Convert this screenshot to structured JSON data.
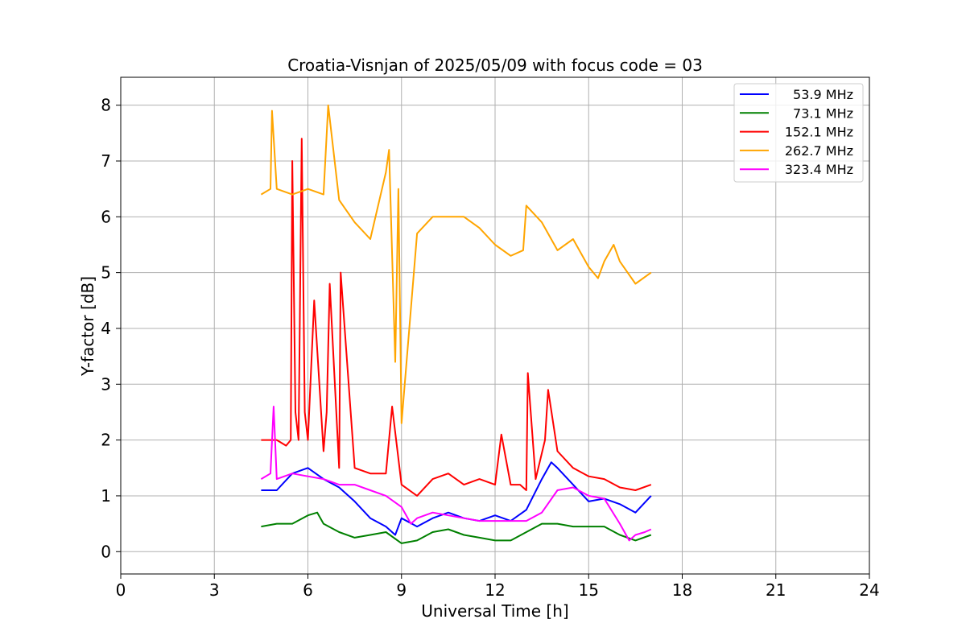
{
  "chart_data": {
    "type": "line",
    "title": "Croatia-Visnjan of 2025/05/09 with focus code = 03",
    "xlabel": "Universal Time [h]",
    "ylabel": "Y-factor [dB]",
    "xlim": [
      0,
      24
    ],
    "ylim": [
      -0.4,
      8.5
    ],
    "xticks": [
      "0",
      "3",
      "6",
      "9",
      "12",
      "15",
      "18",
      "21",
      "24"
    ],
    "yticks": [
      "0",
      "1",
      "2",
      "3",
      "4",
      "5",
      "6",
      "7",
      "8"
    ],
    "grid": true,
    "legend_position": "top-right",
    "series": [
      {
        "name": "53.9 MHz",
        "color": "#0000ff",
        "x": [
          4.5,
          5.0,
          5.5,
          6.0,
          6.5,
          7.0,
          7.5,
          8.0,
          8.5,
          8.8,
          9.0,
          9.5,
          10.0,
          10.5,
          11.0,
          11.5,
          12.0,
          12.5,
          13.0,
          13.5,
          13.8,
          14.0,
          14.5,
          15.0,
          15.5,
          16.0,
          16.5,
          17.0
        ],
        "values": [
          1.1,
          1.1,
          1.4,
          1.5,
          1.3,
          1.15,
          0.9,
          0.6,
          0.45,
          0.3,
          0.6,
          0.45,
          0.6,
          0.7,
          0.6,
          0.55,
          0.65,
          0.55,
          0.75,
          1.3,
          1.6,
          1.5,
          1.2,
          0.9,
          0.95,
          0.85,
          0.7,
          1.0
        ]
      },
      {
        "name": "73.1 MHz",
        "color": "#008000",
        "x": [
          4.5,
          5.0,
          5.5,
          6.0,
          6.3,
          6.5,
          7.0,
          7.5,
          8.0,
          8.5,
          9.0,
          9.5,
          10.0,
          10.5,
          11.0,
          11.5,
          12.0,
          12.5,
          13.0,
          13.5,
          14.0,
          14.5,
          15.0,
          15.5,
          16.0,
          16.5,
          17.0
        ],
        "values": [
          0.45,
          0.5,
          0.5,
          0.65,
          0.7,
          0.5,
          0.35,
          0.25,
          0.3,
          0.35,
          0.15,
          0.2,
          0.35,
          0.4,
          0.3,
          0.25,
          0.2,
          0.2,
          0.35,
          0.5,
          0.5,
          0.45,
          0.45,
          0.45,
          0.3,
          0.2,
          0.3
        ]
      },
      {
        "name": "152.1 MHz",
        "color": "#ff0000",
        "x": [
          4.5,
          5.0,
          5.3,
          5.45,
          5.5,
          5.6,
          5.7,
          5.8,
          5.9,
          6.0,
          6.2,
          6.5,
          6.6,
          6.7,
          7.0,
          7.05,
          7.5,
          8.0,
          8.5,
          8.7,
          9.0,
          9.5,
          10.0,
          10.5,
          11.0,
          11.5,
          12.0,
          12.2,
          12.5,
          12.8,
          13.0,
          13.05,
          13.3,
          13.6,
          13.7,
          14.0,
          14.5,
          15.0,
          15.5,
          16.0,
          16.5,
          17.0
        ],
        "values": [
          2.0,
          2.0,
          1.9,
          2.0,
          7.0,
          2.5,
          2.0,
          7.4,
          2.5,
          2.0,
          4.5,
          1.8,
          2.5,
          4.8,
          1.5,
          5.0,
          1.5,
          1.4,
          1.4,
          2.6,
          1.2,
          1.0,
          1.3,
          1.4,
          1.2,
          1.3,
          1.2,
          2.1,
          1.2,
          1.2,
          1.1,
          3.2,
          1.3,
          2.0,
          2.9,
          1.8,
          1.5,
          1.35,
          1.3,
          1.15,
          1.1,
          1.2
        ]
      },
      {
        "name": "262.7 MHz",
        "color": "#ffa500",
        "x": [
          4.5,
          4.8,
          4.85,
          5.0,
          5.5,
          6.0,
          6.5,
          6.65,
          7.0,
          7.5,
          8.0,
          8.5,
          8.6,
          8.8,
          8.9,
          9.0,
          9.5,
          10.0,
          10.5,
          11.0,
          11.5,
          12.0,
          12.5,
          12.9,
          13.0,
          13.5,
          14.0,
          14.5,
          15.0,
          15.3,
          15.5,
          15.8,
          16.0,
          16.5,
          17.0
        ],
        "values": [
          6.4,
          6.5,
          7.9,
          6.5,
          6.4,
          6.5,
          6.4,
          8.0,
          6.3,
          5.9,
          5.6,
          6.8,
          7.2,
          3.4,
          6.5,
          2.3,
          5.7,
          6.0,
          6.0,
          6.0,
          5.8,
          5.5,
          5.3,
          5.4,
          6.2,
          5.9,
          5.4,
          5.6,
          5.1,
          4.9,
          5.2,
          5.5,
          5.2,
          4.8,
          5.0
        ]
      },
      {
        "name": "323.4 MHz",
        "color": "#ff00ff",
        "x": [
          4.5,
          4.8,
          4.9,
          5.0,
          5.5,
          6.0,
          6.5,
          7.0,
          7.5,
          8.0,
          8.5,
          9.0,
          9.3,
          9.5,
          10.0,
          10.5,
          11.0,
          11.5,
          12.0,
          12.5,
          13.0,
          13.5,
          14.0,
          14.5,
          15.0,
          15.5,
          16.0,
          16.3,
          16.5,
          16.8,
          17.0
        ],
        "values": [
          1.3,
          1.4,
          2.6,
          1.3,
          1.4,
          1.35,
          1.3,
          1.2,
          1.2,
          1.1,
          1.0,
          0.8,
          0.5,
          0.6,
          0.7,
          0.65,
          0.6,
          0.55,
          0.55,
          0.55,
          0.55,
          0.7,
          1.1,
          1.15,
          1.0,
          0.95,
          0.5,
          0.2,
          0.3,
          0.35,
          0.4
        ]
      }
    ]
  }
}
